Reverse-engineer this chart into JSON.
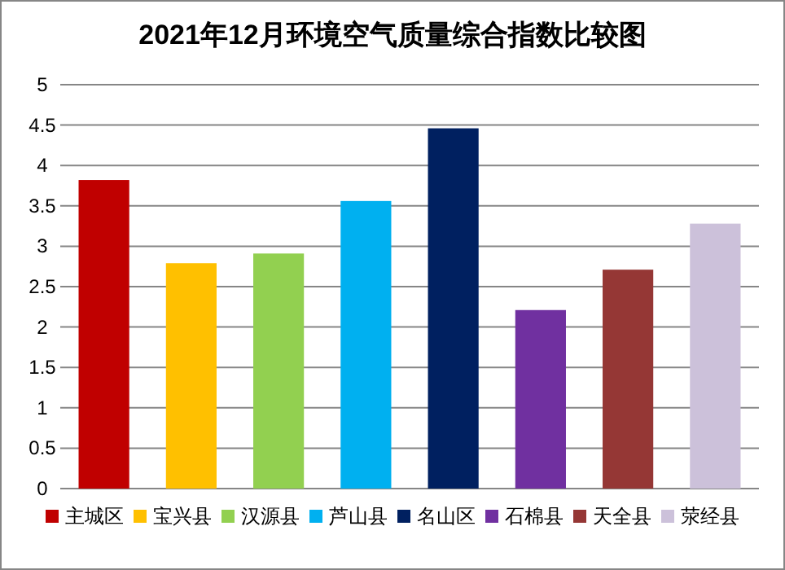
{
  "chart_data": {
    "type": "bar",
    "title": "2021年12月环境空气质量综合指数比较图",
    "categories": [
      null
    ],
    "series": [
      {
        "name": "主城区",
        "color": "#c00000",
        "values": [
          3.82
        ]
      },
      {
        "name": "宝兴县",
        "color": "#ffc000",
        "values": [
          2.79
        ]
      },
      {
        "name": "汉源县",
        "color": "#92d050",
        "values": [
          2.91
        ]
      },
      {
        "name": "芦山县",
        "color": "#00b0f0",
        "values": [
          3.56
        ]
      },
      {
        "name": "名山区",
        "color": "#002060",
        "values": [
          4.46
        ]
      },
      {
        "name": "石棉县",
        "color": "#7030a0",
        "values": [
          2.21
        ]
      },
      {
        "name": "天全县",
        "color": "#953735",
        "values": [
          2.71
        ]
      },
      {
        "name": "荥经县",
        "color": "#ccc1da",
        "values": [
          3.28
        ]
      }
    ],
    "ylim": [
      0,
      5
    ],
    "yticks": [
      0,
      0.5,
      1,
      1.5,
      2,
      2.5,
      3,
      3.5,
      4,
      4.5,
      5
    ],
    "grid": "y",
    "legend": "bottom"
  }
}
